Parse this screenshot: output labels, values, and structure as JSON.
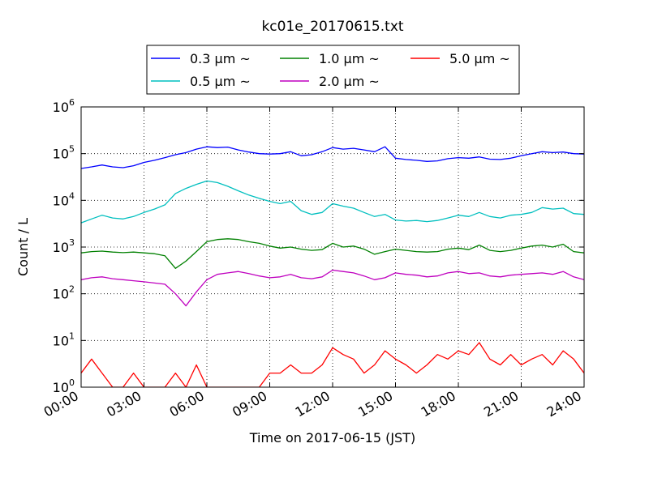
{
  "chart_data": {
    "type": "line",
    "title": "kc01e_20170615.txt",
    "xlabel": "Time on 2017-06-15 (JST)",
    "ylabel": "Count / L",
    "yscale": "log",
    "ylim": [
      1,
      1000000
    ],
    "xlim": [
      "00:00",
      "24:00"
    ],
    "grid": true,
    "legend_position": "top-center",
    "x_ticks": [
      "00:00",
      "03:00",
      "06:00",
      "09:00",
      "12:00",
      "15:00",
      "18:00",
      "21:00",
      "24:00"
    ],
    "y_ticks": [
      {
        "base": "10",
        "exp": "0"
      },
      {
        "base": "10",
        "exp": "1"
      },
      {
        "base": "10",
        "exp": "2"
      },
      {
        "base": "10",
        "exp": "3"
      },
      {
        "base": "10",
        "exp": "4"
      },
      {
        "base": "10",
        "exp": "5"
      },
      {
        "base": "10",
        "exp": "6"
      }
    ],
    "x_hours": [
      0,
      0.5,
      1,
      1.5,
      2,
      2.5,
      3,
      3.5,
      4,
      4.5,
      5,
      5.5,
      6,
      6.5,
      7,
      7.5,
      8,
      8.5,
      9,
      9.5,
      10,
      10.5,
      11,
      11.5,
      12,
      12.5,
      13,
      13.5,
      14,
      14.5,
      15,
      15.5,
      16,
      16.5,
      17,
      17.5,
      18,
      18.5,
      19,
      19.5,
      20,
      20.5,
      21,
      21.5,
      22,
      22.5,
      23,
      23.5,
      24
    ],
    "series": [
      {
        "name": "0.3 μm ~",
        "color": "#0000ff",
        "legend_row": 0,
        "legend_col": 0,
        "values": [
          48000,
          52000,
          57000,
          52000,
          50000,
          55000,
          65000,
          72000,
          82000,
          95000,
          105000,
          125000,
          140000,
          135000,
          138000,
          120000,
          108000,
          100000,
          98000,
          100000,
          110000,
          90000,
          95000,
          110000,
          135000,
          125000,
          130000,
          120000,
          110000,
          140000,
          80000,
          75000,
          72000,
          68000,
          70000,
          78000,
          82000,
          80000,
          85000,
          76000,
          75000,
          80000,
          90000,
          100000,
          110000,
          105000,
          108000,
          100000,
          98000
        ]
      },
      {
        "name": "0.5 μm ~",
        "color": "#00bfbf",
        "legend_row": 1,
        "legend_col": 0,
        "values": [
          3300,
          4000,
          4800,
          4200,
          4000,
          4500,
          5500,
          6500,
          8000,
          14000,
          18000,
          22000,
          26000,
          24000,
          20000,
          16000,
          13000,
          11000,
          9500,
          8500,
          9500,
          6000,
          5000,
          5500,
          8500,
          7500,
          6800,
          5500,
          4500,
          5000,
          3800,
          3600,
          3700,
          3500,
          3700,
          4200,
          4800,
          4500,
          5500,
          4500,
          4200,
          4800,
          5000,
          5500,
          7000,
          6500,
          6800,
          5200,
          5000
        ]
      },
      {
        "name": "1.0 μm ~",
        "color": "#008000",
        "legend_row": 0,
        "legend_col": 1,
        "values": [
          750,
          800,
          820,
          780,
          760,
          780,
          750,
          720,
          650,
          350,
          500,
          800,
          1300,
          1450,
          1500,
          1450,
          1300,
          1200,
          1050,
          950,
          1000,
          900,
          850,
          880,
          1200,
          1000,
          1050,
          900,
          700,
          800,
          900,
          850,
          800,
          780,
          800,
          900,
          950,
          880,
          1100,
          850,
          800,
          850,
          950,
          1050,
          1100,
          1000,
          1150,
          800,
          750
        ]
      },
      {
        "name": "2.0 μm ~",
        "color": "#bf00bf",
        "legend_row": 1,
        "legend_col": 1,
        "values": [
          200,
          220,
          230,
          210,
          200,
          190,
          180,
          170,
          160,
          100,
          55,
          110,
          200,
          260,
          280,
          300,
          270,
          240,
          220,
          230,
          260,
          220,
          210,
          230,
          320,
          300,
          280,
          240,
          200,
          220,
          280,
          260,
          250,
          230,
          240,
          280,
          300,
          270,
          280,
          240,
          230,
          250,
          260,
          270,
          280,
          260,
          300,
          230,
          200
        ]
      },
      {
        "name": "5.0 μm ~",
        "color": "#ff0000",
        "legend_row": 0,
        "legend_col": 2,
        "values": [
          2,
          4,
          2,
          1,
          1,
          2,
          1,
          1,
          1,
          2,
          1,
          3,
          1,
          1,
          1,
          1,
          1,
          1,
          2,
          2,
          3,
          2,
          2,
          3,
          7,
          5,
          4,
          2,
          3,
          6,
          4,
          3,
          2,
          3,
          5,
          4,
          6,
          5,
          9,
          4,
          3,
          5,
          3,
          4,
          5,
          3,
          6,
          4,
          2
        ]
      }
    ]
  }
}
